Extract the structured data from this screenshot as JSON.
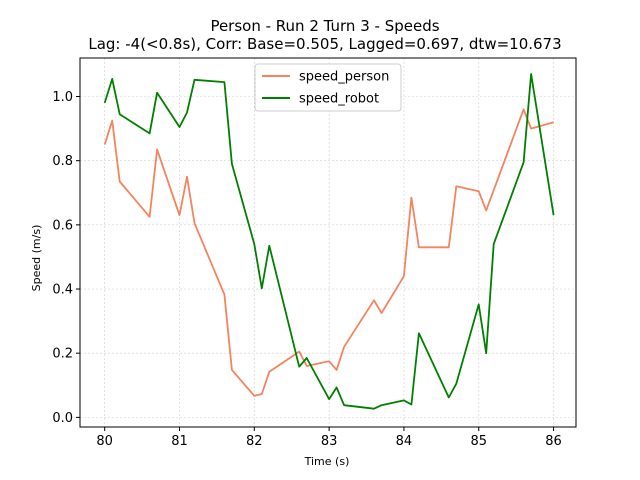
{
  "chart_data": {
    "type": "line",
    "title": "Person - Run 2 Turn 3 - Speeds",
    "subtitle": "Lag: -4(<0.8s), Corr: Base=0.505, Lagged=0.697, dtw=10.673",
    "xlabel": "Time (s)",
    "ylabel": "Speed (m/s)",
    "xlim": [
      79.67,
      86.3
    ],
    "ylim": [
      -0.03,
      1.12
    ],
    "xticks": [
      80,
      81,
      82,
      83,
      84,
      85,
      86
    ],
    "yticks": [
      0.0,
      0.2,
      0.4,
      0.6,
      0.8,
      1.0
    ],
    "grid": true,
    "legend_position": "top-center",
    "series": [
      {
        "name": "speed_person",
        "color": "#f4845f",
        "points": [
          [
            80.0,
            0.85
          ],
          [
            80.1,
            0.925
          ],
          [
            80.2,
            0.735
          ],
          [
            80.6,
            0.625
          ],
          [
            80.7,
            0.835
          ],
          [
            81.0,
            0.63
          ],
          [
            81.1,
            0.75
          ],
          [
            81.2,
            0.605
          ],
          [
            81.6,
            0.383
          ],
          [
            81.7,
            0.148
          ],
          [
            82.0,
            0.067
          ],
          [
            82.1,
            0.073
          ],
          [
            82.2,
            0.142
          ],
          [
            82.6,
            0.205
          ],
          [
            82.7,
            0.16
          ],
          [
            83.0,
            0.175
          ],
          [
            83.1,
            0.148
          ],
          [
            83.2,
            0.22
          ],
          [
            83.6,
            0.365
          ],
          [
            83.7,
            0.325
          ],
          [
            84.0,
            0.44
          ],
          [
            84.1,
            0.685
          ],
          [
            84.2,
            0.53
          ],
          [
            84.6,
            0.53
          ],
          [
            84.7,
            0.72
          ],
          [
            85.0,
            0.705
          ],
          [
            85.1,
            0.645
          ],
          [
            85.6,
            0.96
          ],
          [
            85.7,
            0.9
          ],
          [
            86.0,
            0.92
          ]
        ]
      },
      {
        "name": "speed_robot",
        "color": "#008000",
        "points": [
          [
            80.0,
            0.98
          ],
          [
            80.1,
            1.055
          ],
          [
            80.2,
            0.945
          ],
          [
            80.6,
            0.885
          ],
          [
            80.7,
            1.012
          ],
          [
            81.0,
            0.905
          ],
          [
            81.1,
            0.95
          ],
          [
            81.2,
            1.052
          ],
          [
            81.6,
            1.045
          ],
          [
            81.7,
            0.79
          ],
          [
            82.0,
            0.54
          ],
          [
            82.1,
            0.402
          ],
          [
            82.2,
            0.535
          ],
          [
            82.6,
            0.158
          ],
          [
            82.7,
            0.185
          ],
          [
            83.0,
            0.057
          ],
          [
            83.1,
            0.093
          ],
          [
            83.2,
            0.038
          ],
          [
            83.6,
            0.027
          ],
          [
            83.7,
            0.038
          ],
          [
            84.0,
            0.053
          ],
          [
            84.1,
            0.04
          ],
          [
            84.2,
            0.262
          ],
          [
            84.6,
            0.062
          ],
          [
            84.7,
            0.105
          ],
          [
            85.0,
            0.352
          ],
          [
            85.1,
            0.2
          ],
          [
            85.2,
            0.54
          ],
          [
            85.6,
            0.795
          ],
          [
            85.7,
            1.07
          ],
          [
            86.0,
            0.63
          ]
        ]
      }
    ]
  }
}
